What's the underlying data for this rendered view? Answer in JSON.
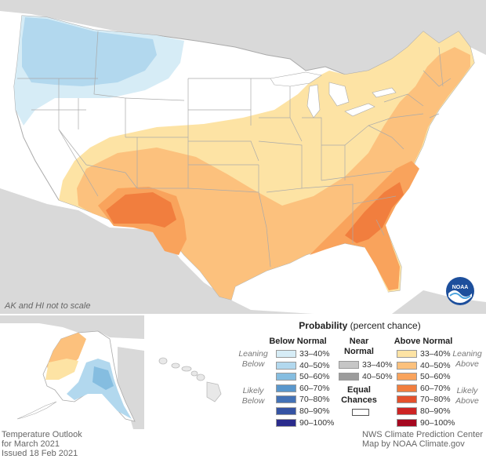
{
  "map": {
    "scale_note": "AK and HI not to scale",
    "logo": {
      "icon": "noaa-logo-icon",
      "text": "NOAA"
    }
  },
  "legend": {
    "title_bold": "Probability",
    "title_rest": " (percent chance)",
    "below": {
      "heading": "Below Normal",
      "leaning_label": [
        "Leaning",
        "Below"
      ],
      "likely_label": [
        "Likely",
        "Below"
      ],
      "items": [
        {
          "range": "33–40%",
          "color": "#d6ecf6"
        },
        {
          "range": "40–50%",
          "color": "#b2d8ee"
        },
        {
          "range": "50–60%",
          "color": "#85bde0"
        },
        {
          "range": "60–70%",
          "color": "#5a97cc"
        },
        {
          "range": "70–80%",
          "color": "#4472b6"
        },
        {
          "range": "80–90%",
          "color": "#3553a3"
        },
        {
          "range": "90–100%",
          "color": "#2a2b8c"
        }
      ]
    },
    "near": {
      "heading": [
        "Near",
        "Normal"
      ],
      "items": [
        {
          "range": "33–40%",
          "color": "#c6c6c6"
        },
        {
          "range": "40–50%",
          "color": "#9c9c9c"
        }
      ],
      "equal": [
        "Equal",
        "Chances"
      ]
    },
    "above": {
      "heading": "Above Normal",
      "leaning_label": [
        "Leaning",
        "Above"
      ],
      "likely_label": [
        "Likely",
        "Above"
      ],
      "items": [
        {
          "range": "33–40%",
          "color": "#fde3a4"
        },
        {
          "range": "40–50%",
          "color": "#fcc17d"
        },
        {
          "range": "50–60%",
          "color": "#f9a35c"
        },
        {
          "range": "60–70%",
          "color": "#f17e3e"
        },
        {
          "range": "70–80%",
          "color": "#e4512c"
        },
        {
          "range": "80–90%",
          "color": "#cd2424"
        },
        {
          "range": "90–100%",
          "color": "#a5071f"
        }
      ]
    }
  },
  "footer": {
    "left": [
      "Temperature Outlook",
      "for March 2021",
      "Issued 18 Feb 2021"
    ],
    "right": [
      "NWS Climate Prediction Center",
      "Map by NOAA Climate.gov"
    ]
  }
}
